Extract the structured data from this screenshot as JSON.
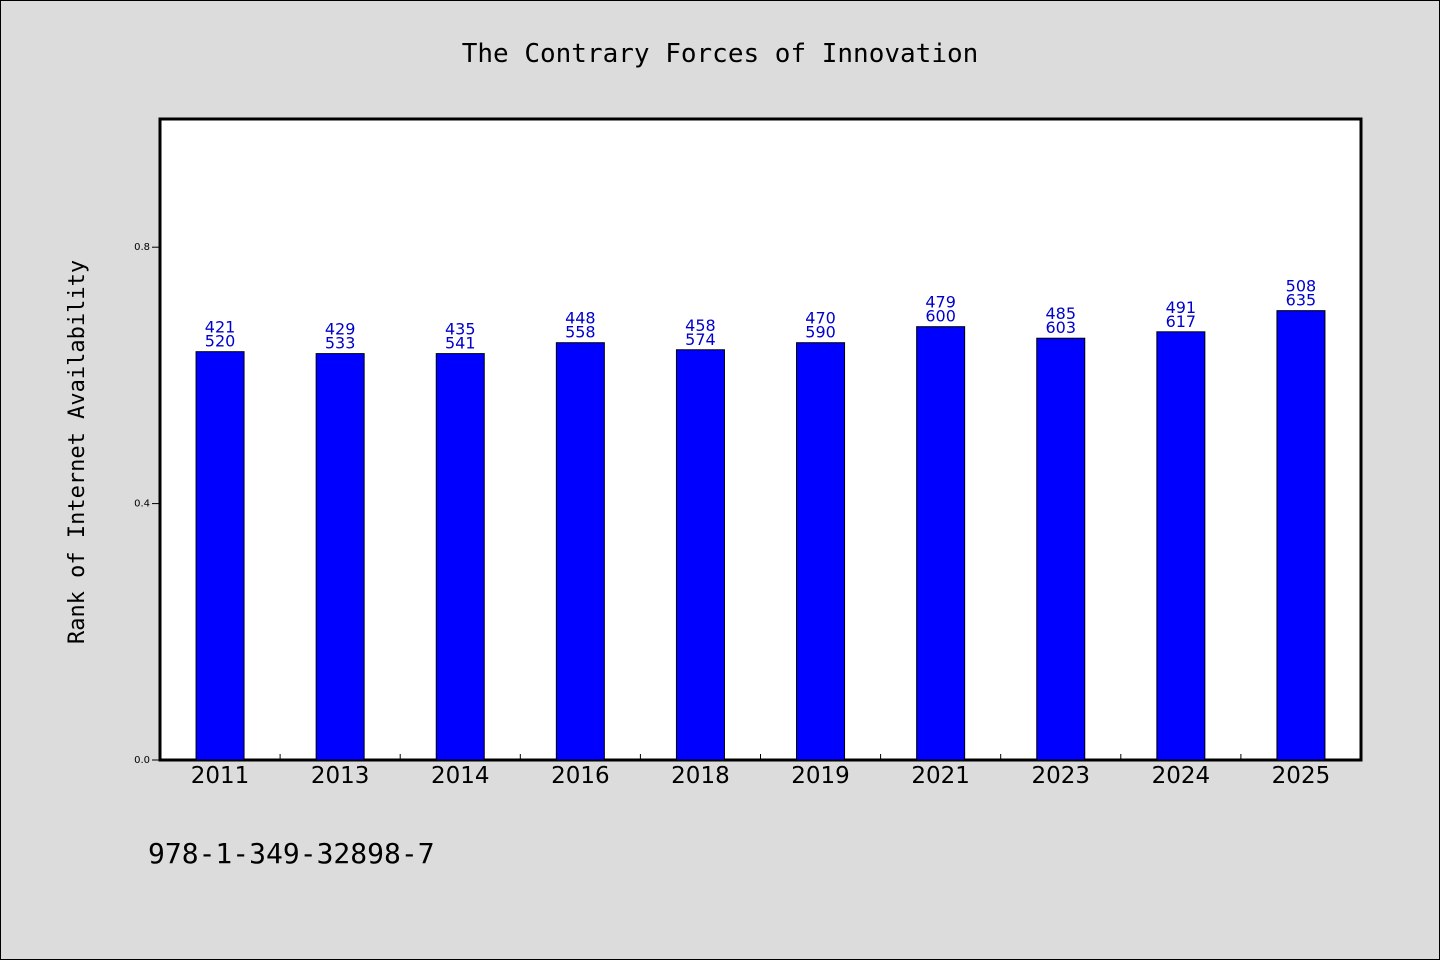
{
  "chart_data": {
    "type": "bar",
    "title": "The Contrary Forces of Innovation",
    "xlabel": "",
    "ylabel": "Rank of Internet Availability",
    "categories": [
      "2011",
      "2013",
      "2014",
      "2016",
      "2018",
      "2019",
      "2021",
      "2023",
      "2024",
      "2025"
    ],
    "values": [
      0.637,
      0.634,
      0.634,
      0.651,
      0.64,
      0.651,
      0.676,
      0.658,
      0.668,
      0.701
    ],
    "data_labels": [
      [
        "421",
        "520"
      ],
      [
        "429",
        "533"
      ],
      [
        "435",
        "541"
      ],
      [
        "448",
        "558"
      ],
      [
        "458",
        "574"
      ],
      [
        "470",
        "590"
      ],
      [
        "479",
        "600"
      ],
      [
        "485",
        "603"
      ],
      [
        "491",
        "617"
      ],
      [
        "508",
        "635"
      ]
    ],
    "ylim": [
      0,
      1.0
    ],
    "yticks": [
      "0.0",
      "0.4",
      "0.8"
    ],
    "ytick_values": [
      0.0,
      0.4,
      0.8
    ],
    "bar_color": "#0000ff",
    "label_color": "#0000cc",
    "plot_background": "#ffffff",
    "figure_background": "#dcdcdc",
    "grid": false,
    "legend": "none"
  },
  "footer": {
    "isbn": "978-1-349-32898-7"
  }
}
